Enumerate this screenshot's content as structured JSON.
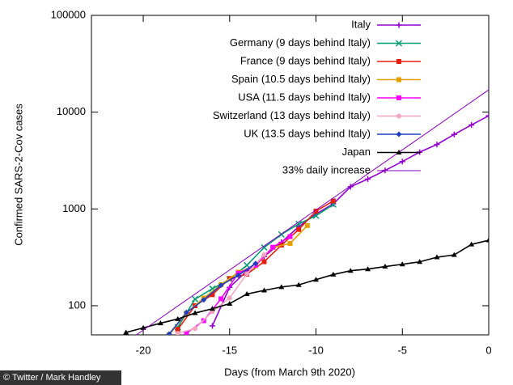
{
  "chart_data": {
    "type": "line",
    "log_y": true,
    "xlabel": "Days (from March 9th 2020)",
    "ylabel": "Confirmed SARS-2-Cov cases",
    "xlim": [
      -23,
      0
    ],
    "xticks": [
      -20,
      -15,
      -10,
      -5,
      0
    ],
    "ylim": [
      50,
      100000
    ],
    "yticks": [
      100,
      1000,
      10000,
      100000
    ],
    "legend": "upper right",
    "series": [
      {
        "name": "Italy",
        "color": "#9400d3",
        "marker": "plus",
        "x": [
          -16,
          -15,
          -14,
          -13,
          -12,
          -11,
          -10,
          -9,
          -8,
          -7,
          -6,
          -5,
          -4,
          -3,
          -2,
          -1,
          0
        ],
        "values": [
          62,
          155,
          229,
          322,
          453,
          655,
          888,
          1128,
          1694,
          2036,
          2502,
          3089,
          3858,
          4636,
          5883,
          7375,
          9172
        ]
      },
      {
        "name": "Germany (9 days behind Italy)",
        "color": "#009e73",
        "marker": "cross",
        "x": [
          -18,
          -17,
          -16,
          -15,
          -14,
          -13,
          -12,
          -11,
          -10,
          -9
        ],
        "values": [
          60,
          117,
          150,
          188,
          262,
          400,
          545,
          700,
          850,
          1112
        ]
      },
      {
        "name": "France (9 days behind Italy)",
        "color": "#e51e10",
        "marker": "square",
        "x": [
          -18,
          -17,
          -16,
          -15,
          -14,
          -13,
          -12,
          -11,
          -10,
          -9
        ],
        "values": [
          57,
          100,
          130,
          191,
          212,
          285,
          423,
          613,
          949,
          1209
        ]
      },
      {
        "name": "Spain (10.5 days behind Italy)",
        "color": "#e69f00",
        "marker": "square",
        "x": [
          -18.5,
          -17.5,
          -16.5,
          -15.5,
          -14.5,
          -13.5,
          -12.5,
          -11.5,
          -10.5
        ],
        "values": [
          50,
          84,
          120,
          165,
          222,
          259,
          400,
          440,
          673
        ]
      },
      {
        "name": "USA (11.5 days behind Italy)",
        "color": "#ff00ff",
        "marker": "square",
        "x": [
          -17.5,
          -16.5,
          -15.5,
          -14.5,
          -13.5,
          -12.5,
          -11.5
        ],
        "values": [
          52,
          70,
          118,
          217,
          262,
          402,
          518
        ]
      },
      {
        "name": "Switzerland (13 days behind Italy)",
        "color": "#f4a6c0",
        "marker": "circle",
        "x": [
          -18,
          -17,
          -16,
          -15,
          -14,
          -13
        ],
        "values": [
          52,
          58,
          87,
          120,
          214,
          337
        ]
      },
      {
        "name": "UK (13.5 days behind Italy)",
        "color": "#1f3fbf",
        "marker": "diamond",
        "x": [
          -18.5,
          -17.5,
          -16.5,
          -15.5,
          -14.5,
          -13.5
        ],
        "values": [
          51,
          85,
          115,
          163,
          206,
          273
        ]
      },
      {
        "name": "Japan",
        "color": "#000000",
        "marker": "triangle",
        "x": [
          -21,
          -20,
          -19,
          -18,
          -17,
          -16,
          -15,
          -14,
          -13,
          -12,
          -11,
          -10,
          -9,
          -8,
          -7,
          -6,
          -5,
          -4,
          -3,
          -2,
          -1,
          0
        ],
        "values": [
          53,
          59,
          66,
          73,
          84,
          93,
          105,
          132,
          144,
          156,
          164,
          186,
          210,
          230,
          239,
          254,
          268,
          284,
          317,
          335,
          430,
          475
        ]
      },
      {
        "name": "33% daily increase",
        "color": "#8b00c8",
        "marker": "none",
        "x": [
          -20.4,
          0
        ],
        "values": [
          50,
          17000
        ]
      }
    ]
  },
  "credit": "© Twitter / Mark Handley"
}
